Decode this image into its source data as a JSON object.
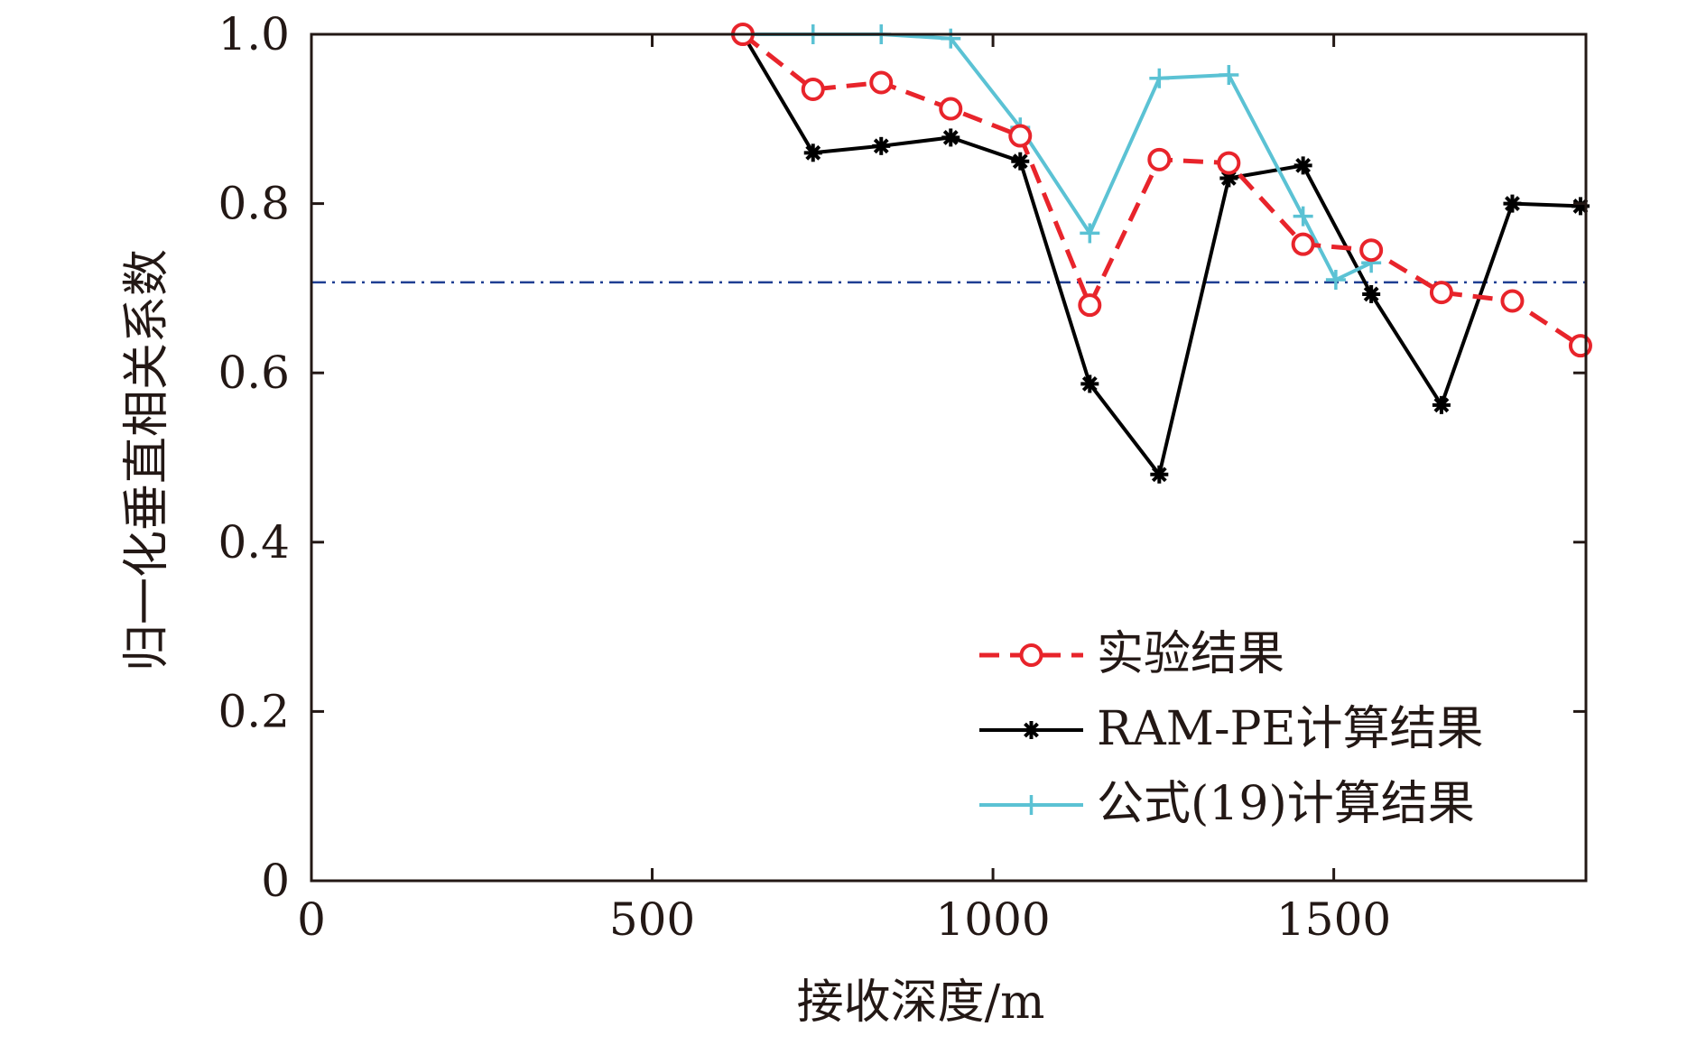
{
  "chart_data": {
    "type": "line",
    "title": "",
    "xlabel": "接收深度/m",
    "ylabel": "归一化垂直相关系数",
    "xlim": [
      0,
      1870
    ],
    "ylim": [
      0,
      1.0
    ],
    "xticks": [
      0,
      500,
      1000,
      1500
    ],
    "xtick_labels": [
      "0",
      "500",
      "1000",
      "1500"
    ],
    "yticks": [
      0,
      0.2,
      0.4,
      0.6,
      0.8,
      1.0
    ],
    "ytick_labels": [
      "0",
      "0.2",
      "0.4",
      "0.6",
      "0.8",
      "1.0"
    ],
    "reference_line": {
      "y": 0.707,
      "style": "dash-dot",
      "color": "#1f3f93"
    },
    "legend_position": "bottom-right",
    "series": [
      {
        "name": "实验结果",
        "color": "#e8242b",
        "dash": "dashed",
        "marker": "circle",
        "x": [
          633,
          736,
          836,
          938,
          1040,
          1142,
          1244,
          1346,
          1455,
          1555,
          1658,
          1762,
          1862
        ],
        "y": [
          1.0,
          0.935,
          0.943,
          0.912,
          0.88,
          0.68,
          0.852,
          0.848,
          0.752,
          0.745,
          0.695,
          0.685,
          0.632
        ]
      },
      {
        "name": "RAM-PE计算结果",
        "color": "#000000",
        "dash": "solid",
        "marker": "asterisk",
        "x": [
          633,
          736,
          836,
          938,
          1040,
          1142,
          1244,
          1346,
          1455,
          1555,
          1658,
          1762,
          1862
        ],
        "y": [
          1.0,
          0.86,
          0.868,
          0.878,
          0.85,
          0.587,
          0.48,
          0.83,
          0.845,
          0.693,
          0.562,
          0.8,
          0.797
        ]
      },
      {
        "name": "公式(19)计算结果",
        "color": "#5bc2d4",
        "dash": "solid",
        "marker": "plus",
        "x": [
          633,
          736,
          836,
          938,
          1040,
          1142,
          1244,
          1346,
          1455,
          1503,
          1555
        ],
        "y": [
          1.0,
          1.0,
          1.0,
          0.995,
          0.89,
          0.765,
          0.948,
          0.952,
          0.785,
          0.71,
          0.73
        ]
      }
    ]
  }
}
